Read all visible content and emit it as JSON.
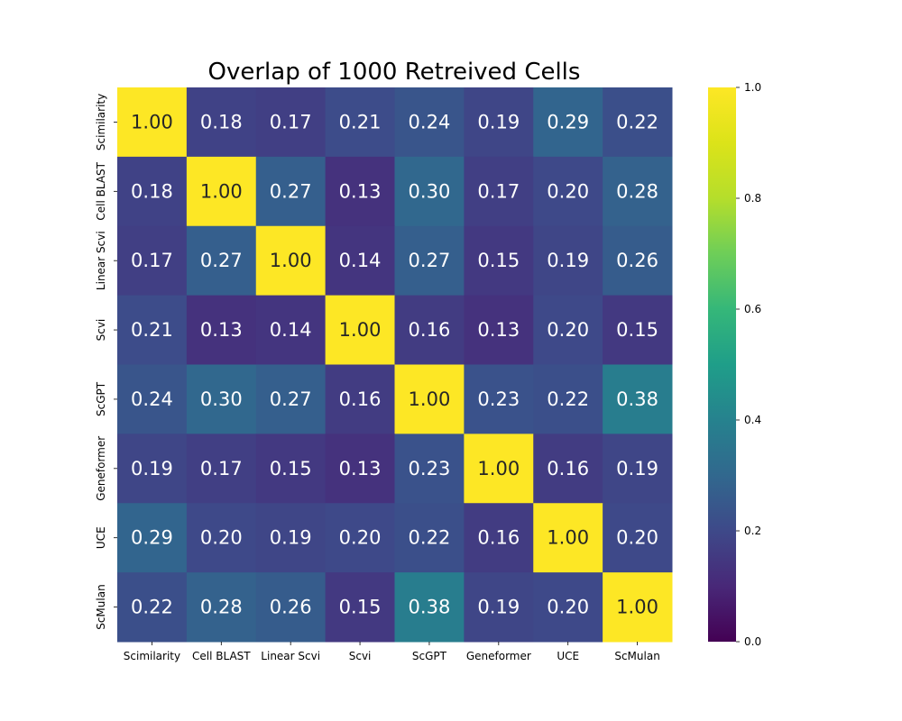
{
  "chart_data": {
    "type": "heatmap",
    "title": "Overlap of 1000 Retreived Cells",
    "xlabel": "",
    "ylabel": "",
    "x_categories": [
      "Scimilarity",
      "Cell BLAST",
      "Linear Scvi",
      "Scvi",
      "ScGPT",
      "Geneformer",
      "UCE",
      "ScMulan"
    ],
    "y_categories": [
      "Scimilarity",
      "Cell BLAST",
      "Linear Scvi",
      "Scvi",
      "ScGPT",
      "Geneformer",
      "UCE",
      "ScMulan"
    ],
    "values": [
      [
        1.0,
        0.18,
        0.17,
        0.21,
        0.24,
        0.19,
        0.29,
        0.22
      ],
      [
        0.18,
        1.0,
        0.27,
        0.13,
        0.3,
        0.17,
        0.2,
        0.28
      ],
      [
        0.17,
        0.27,
        1.0,
        0.14,
        0.27,
        0.15,
        0.19,
        0.26
      ],
      [
        0.21,
        0.13,
        0.14,
        1.0,
        0.16,
        0.13,
        0.2,
        0.15
      ],
      [
        0.24,
        0.3,
        0.27,
        0.16,
        1.0,
        0.23,
        0.22,
        0.38
      ],
      [
        0.19,
        0.17,
        0.15,
        0.13,
        0.23,
        1.0,
        0.16,
        0.19
      ],
      [
        0.29,
        0.2,
        0.19,
        0.2,
        0.22,
        0.16,
        1.0,
        0.2
      ],
      [
        0.22,
        0.28,
        0.26,
        0.15,
        0.38,
        0.19,
        0.2,
        1.0
      ]
    ],
    "value_format": "0.00",
    "colormap": "viridis",
    "vmin": 0.0,
    "vmax": 1.0,
    "colorbar": {
      "ticks": [
        0.0,
        0.2,
        0.4,
        0.6,
        0.8,
        1.0
      ],
      "tick_labels": [
        "0.0",
        "0.2",
        "0.4",
        "0.6",
        "0.8",
        "1.0"
      ]
    },
    "grid": false,
    "legend": "colorbar-right"
  }
}
